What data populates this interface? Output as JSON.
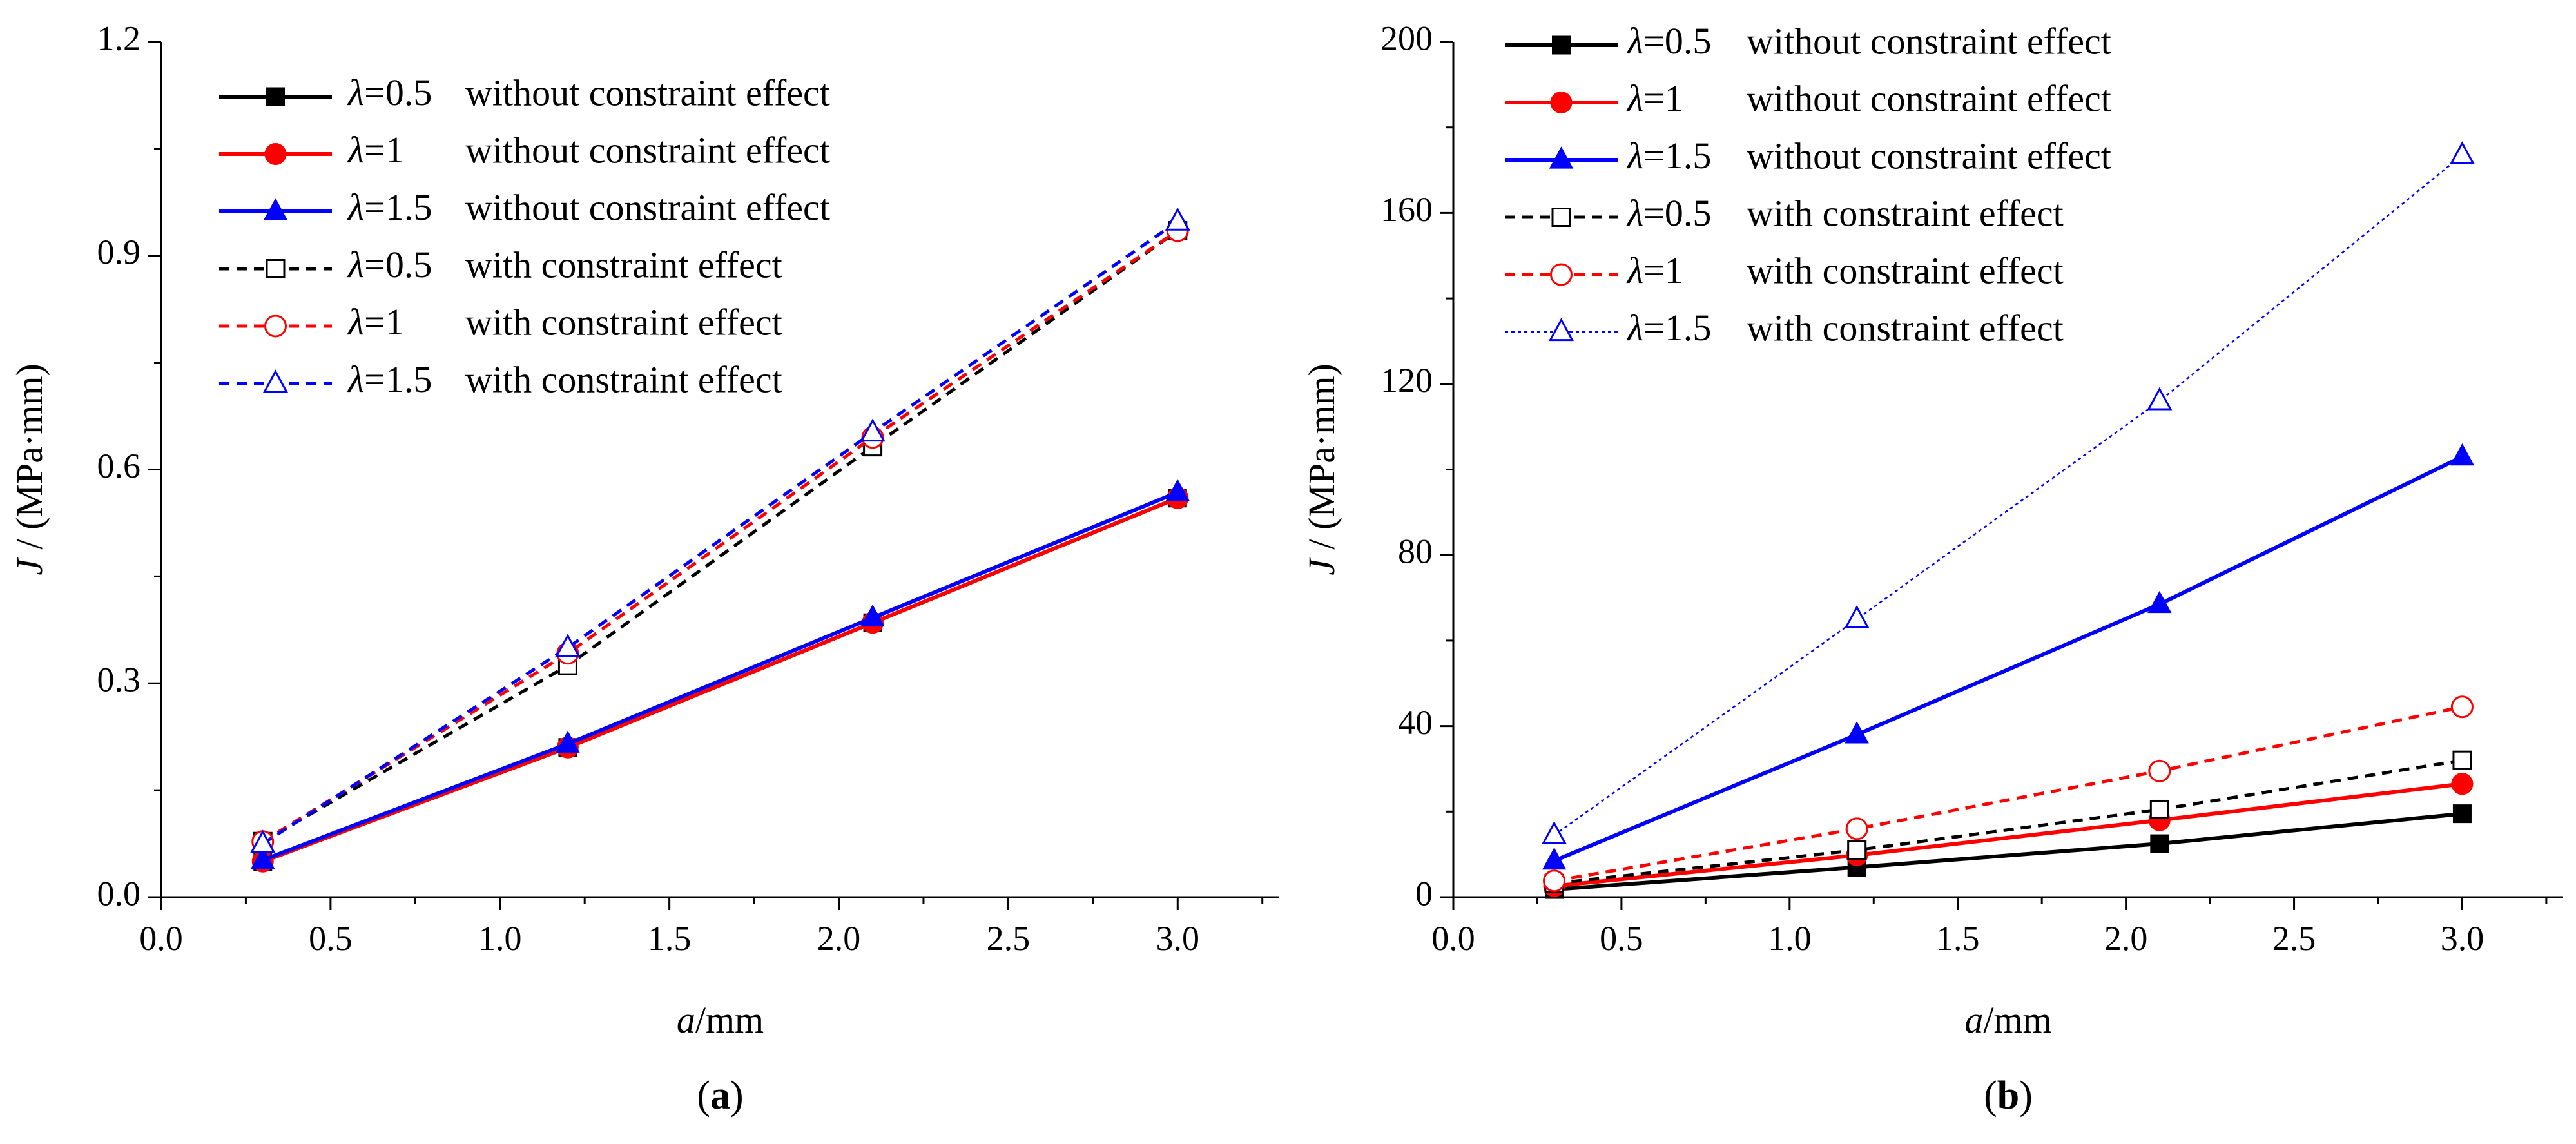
{
  "chart_data": [
    {
      "type": "line",
      "panel_label": "a",
      "xlabel": "a/mm",
      "ylabel": "J / (MPa·mm)",
      "xlim": [
        0.0,
        3.3
      ],
      "ylim": [
        0.0,
        1.2
      ],
      "xticks": [
        "0.0",
        "0.5",
        "1.0",
        "1.5",
        "2.0",
        "2.5",
        "3.0"
      ],
      "yticks": [
        "0.0",
        "0.3",
        "0.6",
        "0.9",
        "1.2"
      ],
      "x": [
        0.3,
        1.2,
        2.1,
        3.0
      ],
      "legend_position": "top-left",
      "series": [
        {
          "lambda": "λ=0.5",
          "label": "without constraint effect",
          "color": "#000000",
          "style": "solid",
          "marker": "square-filled",
          "values": [
            0.05,
            0.21,
            0.385,
            0.56
          ]
        },
        {
          "lambda": "λ=1",
          "label": "without constraint effect",
          "color": "#ff0000",
          "style": "solid",
          "marker": "circle-filled",
          "values": [
            0.05,
            0.21,
            0.385,
            0.56
          ]
        },
        {
          "lambda": "λ=1.5",
          "label": "without constraint effect",
          "color": "#0000ff",
          "style": "solid",
          "marker": "triangle-filled",
          "values": [
            0.052,
            0.215,
            0.392,
            0.568
          ]
        },
        {
          "lambda": "λ=0.5",
          "label": "with constraint effect",
          "color": "#000000",
          "style": "dashed",
          "marker": "square-open",
          "values": [
            0.078,
            0.325,
            0.632,
            0.935
          ]
        },
        {
          "lambda": "λ=1",
          "label": "with constraint effect",
          "color": "#ff0000",
          "style": "dashed",
          "marker": "circle-open",
          "values": [
            0.078,
            0.342,
            0.645,
            0.935
          ]
        },
        {
          "lambda": "λ=1.5",
          "label": "with constraint effect",
          "color": "#0000ff",
          "style": "dashed",
          "marker": "triangle-open",
          "values": [
            0.075,
            0.35,
            0.652,
            0.948
          ]
        }
      ]
    },
    {
      "type": "line",
      "panel_label": "b",
      "xlabel": "a/mm",
      "ylabel": "J / (MPa·mm)",
      "xlim": [
        0.0,
        3.3
      ],
      "ylim": [
        0,
        200
      ],
      "xticks": [
        "0.0",
        "0.5",
        "1.0",
        "1.5",
        "2.0",
        "2.5",
        "3.0"
      ],
      "yticks": [
        "0",
        "40",
        "80",
        "120",
        "160",
        "200"
      ],
      "x": [
        0.3,
        1.2,
        2.1,
        3.0
      ],
      "legend_position": "top-left",
      "series": [
        {
          "lambda": "λ=0.5",
          "label": "without constraint effect",
          "color": "#000000",
          "style": "solid",
          "marker": "square-filled",
          "values": [
            1.8,
            7,
            12.5,
            19.5
          ]
        },
        {
          "lambda": "λ=1",
          "label": "without constraint effect",
          "color": "#ff0000",
          "style": "solid",
          "marker": "circle-filled",
          "values": [
            2.6,
            9.8,
            18,
            26.5
          ]
        },
        {
          "lambda": "λ=1.5",
          "label": "without constraint effect",
          "color": "#0000ff",
          "style": "solid",
          "marker": "triangle-filled",
          "values": [
            8.5,
            38,
            68.5,
            103
          ]
        },
        {
          "lambda": "λ=0.5",
          "label": "with constraint effect",
          "color": "#000000",
          "style": "dashed",
          "marker": "square-open",
          "values": [
            3.2,
            11,
            20.5,
            32
          ]
        },
        {
          "lambda": "λ=1",
          "label": "with constraint effect",
          "color": "#ff0000",
          "style": "dashed",
          "marker": "circle-open",
          "values": [
            3.8,
            16,
            29.5,
            44.5
          ]
        },
        {
          "lambda": "λ=1.5",
          "label": "with constraint effect",
          "color": "#0000ff",
          "style": "dotted",
          "marker": "triangle-open",
          "values": [
            14.5,
            65,
            116,
            173.5
          ]
        }
      ]
    }
  ]
}
